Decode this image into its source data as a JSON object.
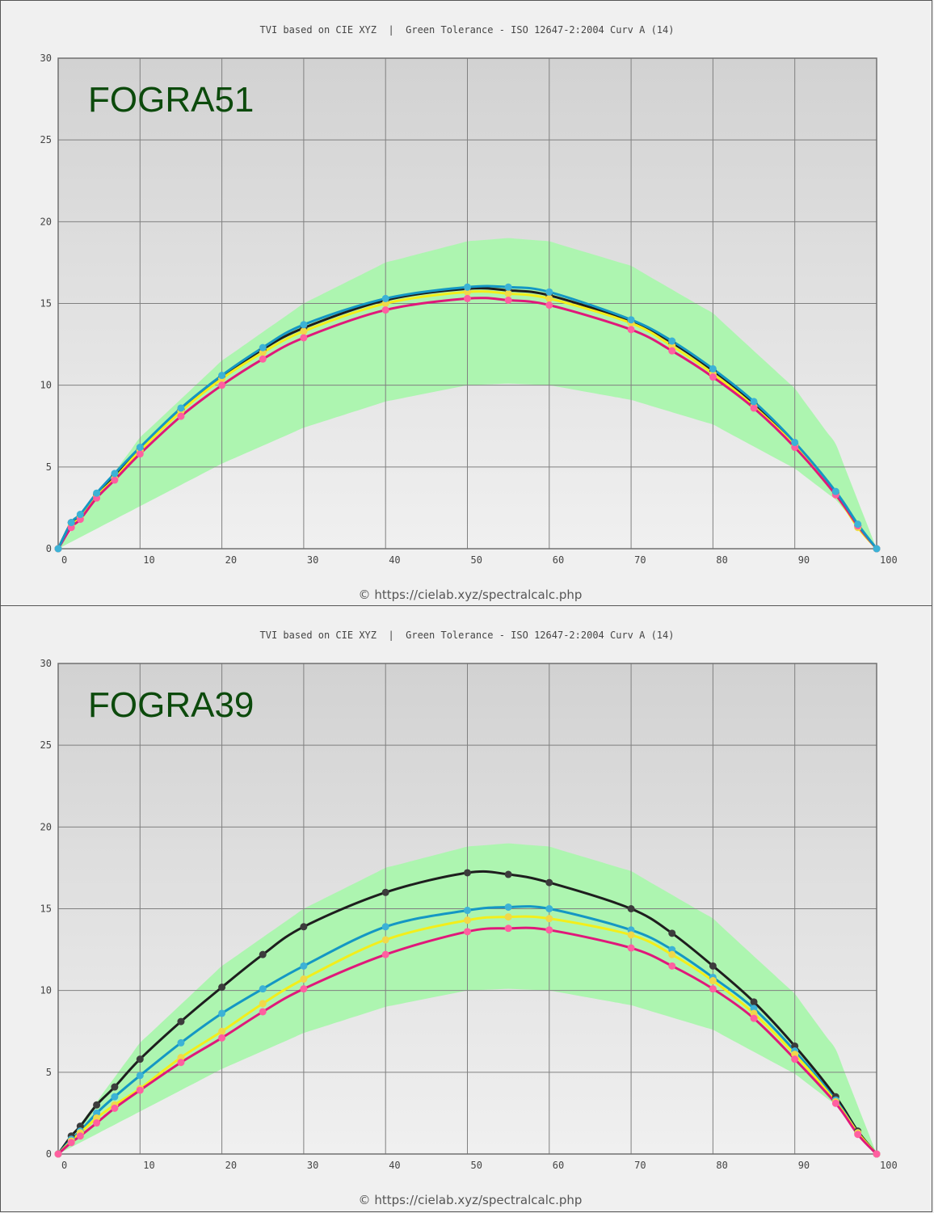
{
  "chart_data": [
    {
      "type": "line",
      "title": "TVI based on CIE XYZ  |  Green Tolerance - ISO 12647-2:2004 Curv A (14)",
      "label": "FOGRA51",
      "footer": "© https://cielab.xyz/spectralcalc.php",
      "xlim": [
        0,
        100
      ],
      "ylim": [
        0,
        30
      ],
      "xticks": [
        0,
        10,
        20,
        30,
        40,
        50,
        60,
        70,
        80,
        90,
        100
      ],
      "yticks": [
        0,
        5,
        10,
        15,
        20,
        25,
        30
      ],
      "grid": true,
      "tolerance_band": {
        "color": "#adf5b0",
        "x": [
          0,
          10,
          20,
          30,
          40,
          50,
          55,
          60,
          70,
          80,
          90,
          95,
          100
        ],
        "upper": [
          0,
          6.8,
          11.5,
          15.0,
          17.5,
          18.8,
          19.0,
          18.8,
          17.3,
          14.4,
          9.8,
          6.4,
          0
        ],
        "lower": [
          0,
          2.6,
          5.2,
          7.4,
          9.0,
          10.0,
          10.1,
          10.0,
          9.1,
          7.6,
          4.9,
          3.0,
          0
        ]
      },
      "x": [
        0,
        1.6,
        2.7,
        4.7,
        6.9,
        10,
        15,
        20,
        25,
        30,
        40,
        50,
        55,
        60,
        70,
        75,
        80,
        85,
        90,
        95,
        97.7,
        100
      ],
      "series": [
        {
          "color": "#202020",
          "values": [
            0,
            1.6,
            2.0,
            3.3,
            4.5,
            6.1,
            8.5,
            10.5,
            12.2,
            13.5,
            15.2,
            15.9,
            15.8,
            15.5,
            13.9,
            12.6,
            10.9,
            8.9,
            6.4,
            3.4,
            1.4,
            0
          ]
        },
        {
          "color": "#f3ee1a",
          "values": [
            0,
            1.4,
            1.9,
            3.2,
            4.3,
            6.0,
            8.4,
            10.4,
            12.0,
            13.3,
            15.0,
            15.7,
            15.6,
            15.3,
            13.8,
            12.4,
            10.7,
            8.7,
            6.3,
            3.3,
            1.3,
            0
          ]
        },
        {
          "color": "#ff5fa0",
          "values": [
            0,
            1.3,
            1.8,
            3.1,
            4.2,
            5.8,
            8.1,
            10.0,
            11.6,
            12.9,
            14.6,
            15.3,
            15.2,
            14.9,
            13.4,
            12.1,
            10.5,
            8.6,
            6.2,
            3.3,
            1.4,
            0
          ]
        },
        {
          "color": "#28a8cc",
          "values": [
            0,
            1.6,
            2.1,
            3.4,
            4.6,
            6.2,
            8.6,
            10.6,
            12.3,
            13.7,
            15.3,
            16.0,
            16.0,
            15.7,
            14.0,
            12.7,
            11.0,
            9.0,
            6.5,
            3.5,
            1.5,
            0
          ]
        }
      ]
    },
    {
      "type": "line",
      "title": "TVI based on CIE XYZ  |  Green Tolerance - ISO 12647-2:2004 Curv A (14)",
      "label": "FOGRA39",
      "footer": "© https://cielab.xyz/spectralcalc.php",
      "xlim": [
        0,
        100
      ],
      "ylim": [
        0,
        30
      ],
      "xticks": [
        0,
        10,
        20,
        30,
        40,
        50,
        60,
        70,
        80,
        90,
        100
      ],
      "yticks": [
        0,
        5,
        10,
        15,
        20,
        25,
        30
      ],
      "grid": true,
      "tolerance_band": {
        "color": "#adf5b0",
        "x": [
          0,
          10,
          20,
          30,
          40,
          50,
          55,
          60,
          70,
          80,
          90,
          95,
          100
        ],
        "upper": [
          0,
          6.8,
          11.5,
          15.0,
          17.5,
          18.8,
          19.0,
          18.8,
          17.3,
          14.4,
          9.8,
          6.4,
          0
        ],
        "lower": [
          0,
          2.6,
          5.2,
          7.4,
          9.0,
          10.0,
          10.1,
          10.0,
          9.1,
          7.6,
          4.9,
          3.0,
          0
        ]
      },
      "x": [
        0,
        1.6,
        2.7,
        4.7,
        6.9,
        10,
        15,
        20,
        25,
        30,
        40,
        50,
        55,
        60,
        70,
        75,
        80,
        85,
        90,
        95,
        97.7,
        100
      ],
      "series": [
        {
          "color": "#202020",
          "values": [
            0,
            1.1,
            1.7,
            3.0,
            4.1,
            5.8,
            8.1,
            10.2,
            12.2,
            13.9,
            16.0,
            17.2,
            17.1,
            16.6,
            15.0,
            13.5,
            11.5,
            9.3,
            6.6,
            3.5,
            1.4,
            0
          ]
        },
        {
          "color": "#28a8cc",
          "values": [
            0,
            0.9,
            1.4,
            2.5,
            3.5,
            4.8,
            6.8,
            8.6,
            10.1,
            11.5,
            13.9,
            14.9,
            15.1,
            15.0,
            13.7,
            12.5,
            10.8,
            8.9,
            6.3,
            3.3,
            1.3,
            0
          ]
        },
        {
          "color": "#f3ee1a",
          "values": [
            0,
            0.8,
            1.3,
            2.2,
            3.0,
            4.0,
            5.9,
            7.5,
            9.2,
            10.7,
            13.1,
            14.3,
            14.5,
            14.4,
            13.4,
            12.2,
            10.6,
            8.6,
            6.1,
            3.2,
            1.3,
            0
          ]
        },
        {
          "color": "#ff5fa0",
          "values": [
            0,
            0.7,
            1.1,
            1.9,
            2.8,
            3.9,
            5.6,
            7.1,
            8.7,
            10.1,
            12.2,
            13.6,
            13.8,
            13.7,
            12.6,
            11.5,
            10.1,
            8.3,
            5.8,
            3.1,
            1.2,
            0
          ]
        }
      ]
    }
  ]
}
